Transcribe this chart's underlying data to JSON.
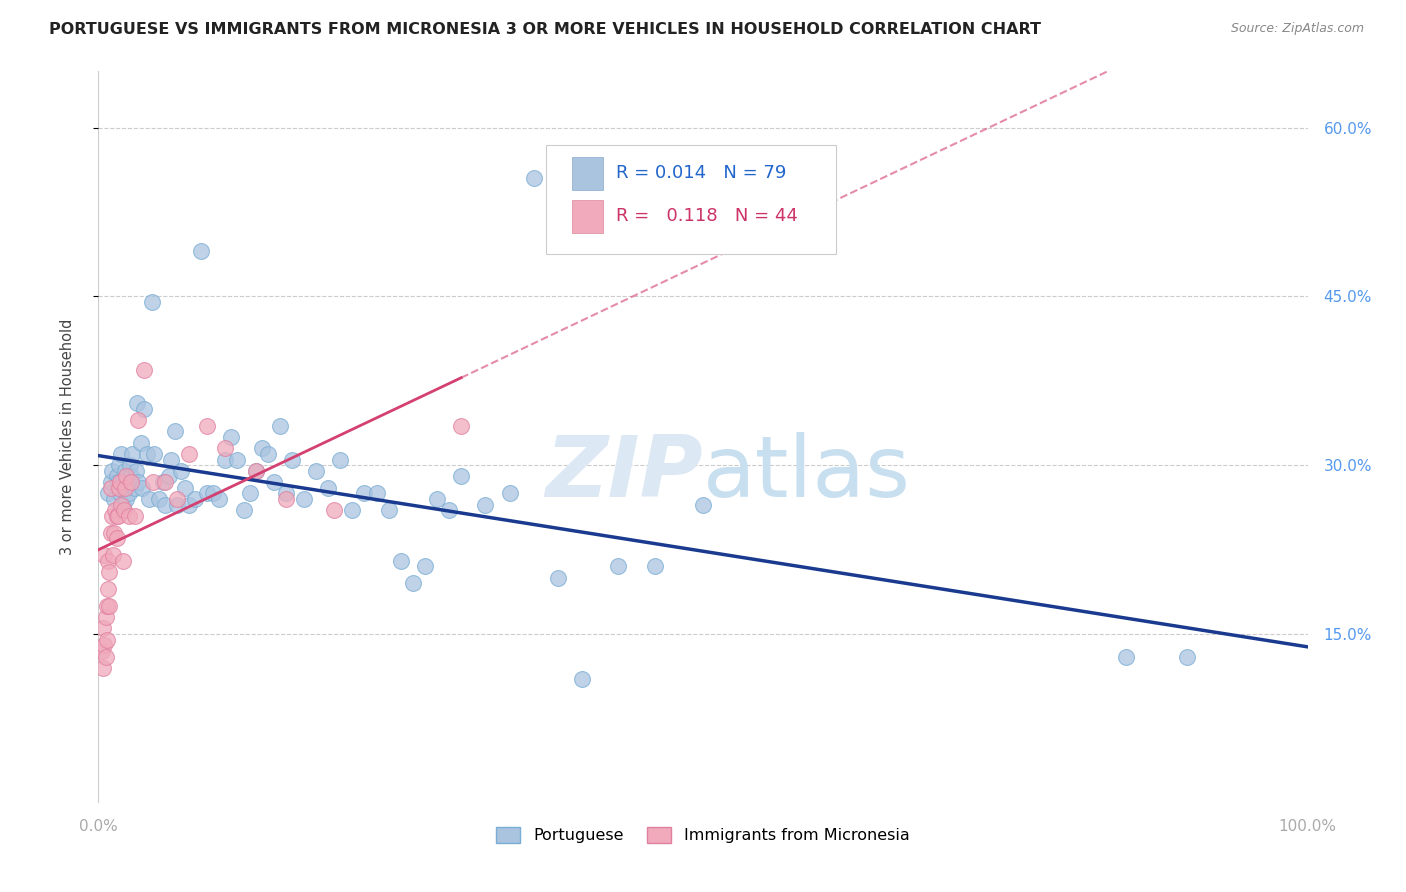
{
  "title": "PORTUGUESE VS IMMIGRANTS FROM MICRONESIA 3 OR MORE VEHICLES IN HOUSEHOLD CORRELATION CHART",
  "source": "Source: ZipAtlas.com",
  "ylabel": "3 or more Vehicles in Household",
  "yticks": [
    "60.0%",
    "45.0%",
    "30.0%",
    "15.0%"
  ],
  "ytick_vals": [
    0.6,
    0.45,
    0.3,
    0.15
  ],
  "xlim": [
    0.0,
    1.0
  ],
  "ylim": [
    0.0,
    0.65
  ],
  "series1_label": "Portuguese",
  "series2_label": "Immigrants from Micronesia",
  "series1_color": "#aac4e0",
  "series1_edge_color": "#7aadd4",
  "series1_line_color": "#1a3a8f",
  "series2_color": "#f0aabb",
  "series2_edge_color": "#e080a0",
  "series2_line_color": "#d44070",
  "R1": "0.014",
  "N1": "79",
  "R2": "0.118",
  "N2": "44",
  "background_color": "#ffffff",
  "watermark": "ZIPatlas",
  "series1_x": [
    0.008,
    0.01,
    0.011,
    0.013,
    0.015,
    0.016,
    0.017,
    0.018,
    0.019,
    0.02,
    0.021,
    0.022,
    0.023,
    0.025,
    0.026,
    0.027,
    0.028,
    0.03,
    0.031,
    0.032,
    0.033,
    0.035,
    0.036,
    0.038,
    0.04,
    0.042,
    0.044,
    0.046,
    0.05,
    0.053,
    0.055,
    0.058,
    0.06,
    0.063,
    0.065,
    0.068,
    0.072,
    0.075,
    0.08,
    0.085,
    0.09,
    0.095,
    0.1,
    0.105,
    0.11,
    0.115,
    0.12,
    0.125,
    0.13,
    0.135,
    0.14,
    0.145,
    0.15,
    0.155,
    0.16,
    0.17,
    0.18,
    0.19,
    0.2,
    0.21,
    0.22,
    0.23,
    0.24,
    0.25,
    0.26,
    0.27,
    0.28,
    0.29,
    0.3,
    0.32,
    0.34,
    0.36,
    0.38,
    0.4,
    0.43,
    0.46,
    0.5,
    0.85,
    0.9
  ],
  "series1_y": [
    0.275,
    0.285,
    0.295,
    0.27,
    0.29,
    0.285,
    0.3,
    0.275,
    0.31,
    0.265,
    0.28,
    0.295,
    0.27,
    0.275,
    0.3,
    0.29,
    0.31,
    0.28,
    0.295,
    0.355,
    0.285,
    0.32,
    0.28,
    0.35,
    0.31,
    0.27,
    0.445,
    0.31,
    0.27,
    0.285,
    0.265,
    0.29,
    0.305,
    0.33,
    0.265,
    0.295,
    0.28,
    0.265,
    0.27,
    0.49,
    0.275,
    0.275,
    0.27,
    0.305,
    0.325,
    0.305,
    0.26,
    0.275,
    0.295,
    0.315,
    0.31,
    0.285,
    0.335,
    0.275,
    0.305,
    0.27,
    0.295,
    0.28,
    0.305,
    0.26,
    0.275,
    0.275,
    0.26,
    0.215,
    0.195,
    0.21,
    0.27,
    0.26,
    0.29,
    0.265,
    0.275,
    0.555,
    0.2,
    0.11,
    0.21,
    0.21,
    0.265,
    0.13,
    0.13
  ],
  "series2_x": [
    0.003,
    0.004,
    0.004,
    0.005,
    0.005,
    0.006,
    0.006,
    0.007,
    0.007,
    0.008,
    0.008,
    0.009,
    0.009,
    0.01,
    0.01,
    0.011,
    0.012,
    0.013,
    0.014,
    0.015,
    0.015,
    0.016,
    0.017,
    0.018,
    0.019,
    0.02,
    0.021,
    0.022,
    0.023,
    0.025,
    0.027,
    0.03,
    0.033,
    0.038,
    0.045,
    0.055,
    0.065,
    0.075,
    0.09,
    0.105,
    0.13,
    0.155,
    0.195,
    0.3
  ],
  "series2_y": [
    0.135,
    0.155,
    0.12,
    0.22,
    0.14,
    0.165,
    0.13,
    0.175,
    0.145,
    0.215,
    0.19,
    0.205,
    0.175,
    0.28,
    0.24,
    0.255,
    0.22,
    0.24,
    0.26,
    0.235,
    0.255,
    0.255,
    0.28,
    0.285,
    0.265,
    0.215,
    0.26,
    0.28,
    0.29,
    0.255,
    0.285,
    0.255,
    0.34,
    0.385,
    0.285,
    0.285,
    0.27,
    0.31,
    0.335,
    0.315,
    0.295,
    0.27,
    0.26,
    0.335
  ]
}
